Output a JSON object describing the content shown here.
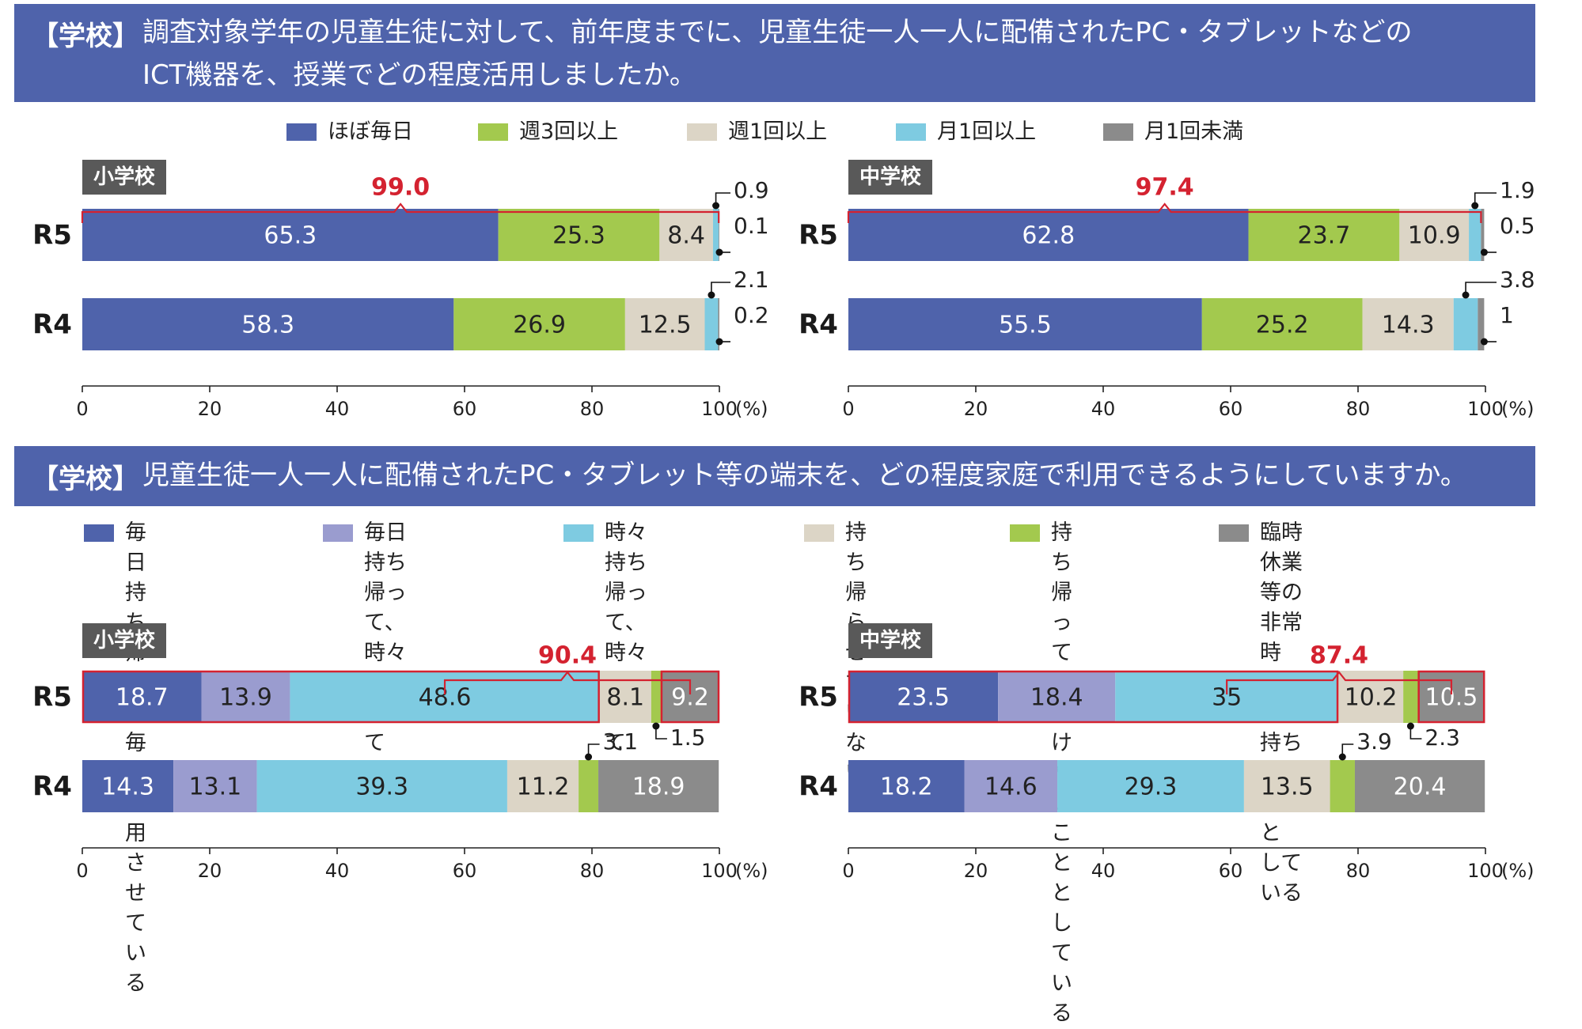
{
  "section1": {
    "label": "【学校】",
    "question_line1": "調査対象学年の児童生徒に対して、前年度までに、児童生徒一人一人に配備されたPC・タブレットなどの",
    "question_line2": "ICT機器を、授業でどの程度活用しましたか。",
    "legend": [
      {
        "label": "ほぼ毎日",
        "color": "#4f63ab"
      },
      {
        "label": "週3回以上",
        "color": "#a3c94e"
      },
      {
        "label": "週1回以上",
        "color": "#dcd5c6"
      },
      {
        "label": "月1回以上",
        "color": "#7ecbe1"
      },
      {
        "label": "月1回未満",
        "color": "#8b8b8b"
      }
    ]
  },
  "section2": {
    "label": "【学校】",
    "question": "児童生徒一人一人に配備されたPC・タブレット等の端末を、どの程度家庭で利用できるようにしていますか。",
    "legend": [
      {
        "label": "毎日持ち帰って、\n毎日利用させて\nいる",
        "color": "#4f63ab"
      },
      {
        "label": "毎日持ち帰って、\n時々利用させて\nいる",
        "color": "#9a9ccf"
      },
      {
        "label": "時々持ち帰って、\n時々利用させて\nいる",
        "color": "#7ecbe1"
      },
      {
        "label": "持ち帰らせて\nいない",
        "color": "#dcd5c6"
      },
      {
        "label": "持ち帰っては\nいけないこと\nとしている",
        "color": "#a3c94e"
      },
      {
        "label": "臨時休業等の非常時\nのみ、持ち帰ることと\nしている",
        "color": "#8b8b8b"
      }
    ]
  },
  "colors": {
    "banner": "#4f63ab",
    "highlight": "#d42230",
    "section_box": "#595959",
    "white_label": "#ffffff",
    "dark_label": "#222222"
  },
  "chart_data": [
    {
      "type": "bar",
      "orientation": "horizontal-stacked",
      "section_label": "小学校",
      "categories": [
        "R5",
        "R4"
      ],
      "series": [
        {
          "name": "ほぼ毎日",
          "values": [
            65.3,
            58.3
          ]
        },
        {
          "name": "週3回以上",
          "values": [
            25.3,
            26.9
          ]
        },
        {
          "name": "週1回以上",
          "values": [
            8.4,
            12.5
          ]
        },
        {
          "name": "月1回以上",
          "values": [
            0.9,
            2.1
          ]
        },
        {
          "name": "月1回未満",
          "values": [
            0.1,
            0.2
          ]
        }
      ],
      "bracket": {
        "value": "99.0",
        "row": "R5",
        "from_series": 0,
        "to_series": 3
      },
      "x_ticks": [
        "0",
        "20",
        "40",
        "60",
        "80",
        "100"
      ],
      "xlim": [
        0,
        100
      ],
      "unit_label": "(%)"
    },
    {
      "type": "bar",
      "orientation": "horizontal-stacked",
      "section_label": "中学校",
      "categories": [
        "R5",
        "R4"
      ],
      "series": [
        {
          "name": "ほぼ毎日",
          "values": [
            62.8,
            55.5
          ]
        },
        {
          "name": "週3回以上",
          "values": [
            23.7,
            25.2
          ]
        },
        {
          "name": "週1回以上",
          "values": [
            10.9,
            14.3
          ]
        },
        {
          "name": "月1回以上",
          "values": [
            1.9,
            3.8
          ]
        },
        {
          "name": "月1回未満",
          "values": [
            0.5,
            1.0
          ]
        }
      ],
      "bracket": {
        "value": "97.4",
        "row": "R5",
        "from_series": 0,
        "to_series": 3
      },
      "x_ticks": [
        "0",
        "20",
        "40",
        "60",
        "80",
        "100"
      ],
      "xlim": [
        0,
        100
      ],
      "unit_label": "(%)"
    },
    {
      "type": "bar",
      "orientation": "horizontal-stacked",
      "section_label": "小学校",
      "categories": [
        "R5",
        "R4"
      ],
      "series": [
        {
          "name": "毎日持ち帰って、毎日利用させている",
          "values": [
            18.7,
            14.3
          ]
        },
        {
          "name": "毎日持ち帰って、時々利用させている",
          "values": [
            13.9,
            13.1
          ]
        },
        {
          "name": "時々持ち帰って、時々利用させている",
          "values": [
            48.6,
            39.3
          ]
        },
        {
          "name": "持ち帰らせていない",
          "values": [
            8.1,
            11.2
          ]
        },
        {
          "name": "持ち帰ってはいけないこととしている",
          "values": [
            1.5,
            3.1
          ]
        },
        {
          "name": "臨時休業等の非常時のみ、持ち帰ることとしている",
          "values": [
            9.2,
            18.9
          ]
        }
      ],
      "bracket": {
        "value": "90.4",
        "row": "R5",
        "from_series": 2,
        "to_series": 5
      },
      "x_ticks": [
        "0",
        "20",
        "40",
        "60",
        "80",
        "100"
      ],
      "xlim": [
        0,
        100
      ],
      "unit_label": "(%)"
    },
    {
      "type": "bar",
      "orientation": "horizontal-stacked",
      "section_label": "中学校",
      "categories": [
        "R5",
        "R4"
      ],
      "series": [
        {
          "name": "毎日持ち帰って、毎日利用させている",
          "values": [
            23.5,
            18.2
          ]
        },
        {
          "name": "毎日持ち帰って、時々利用させている",
          "values": [
            18.4,
            14.6
          ]
        },
        {
          "name": "時々持ち帰って、時々利用させている",
          "values": [
            35.0,
            29.3
          ]
        },
        {
          "name": "持ち帰らせていない",
          "values": [
            10.2,
            13.5
          ]
        },
        {
          "name": "持ち帰ってはいけないこととしている",
          "values": [
            2.3,
            3.9
          ]
        },
        {
          "name": "臨時休業等の非常時のみ、持ち帰ることとしている",
          "values": [
            10.5,
            20.4
          ]
        }
      ],
      "bracket": {
        "value": "87.4",
        "row": "R5",
        "from_series": 2,
        "to_series": 5
      },
      "x_ticks": [
        "0",
        "20",
        "40",
        "60",
        "80",
        "100"
      ],
      "xlim": [
        0,
        100
      ],
      "unit_label": "(%)"
    }
  ]
}
